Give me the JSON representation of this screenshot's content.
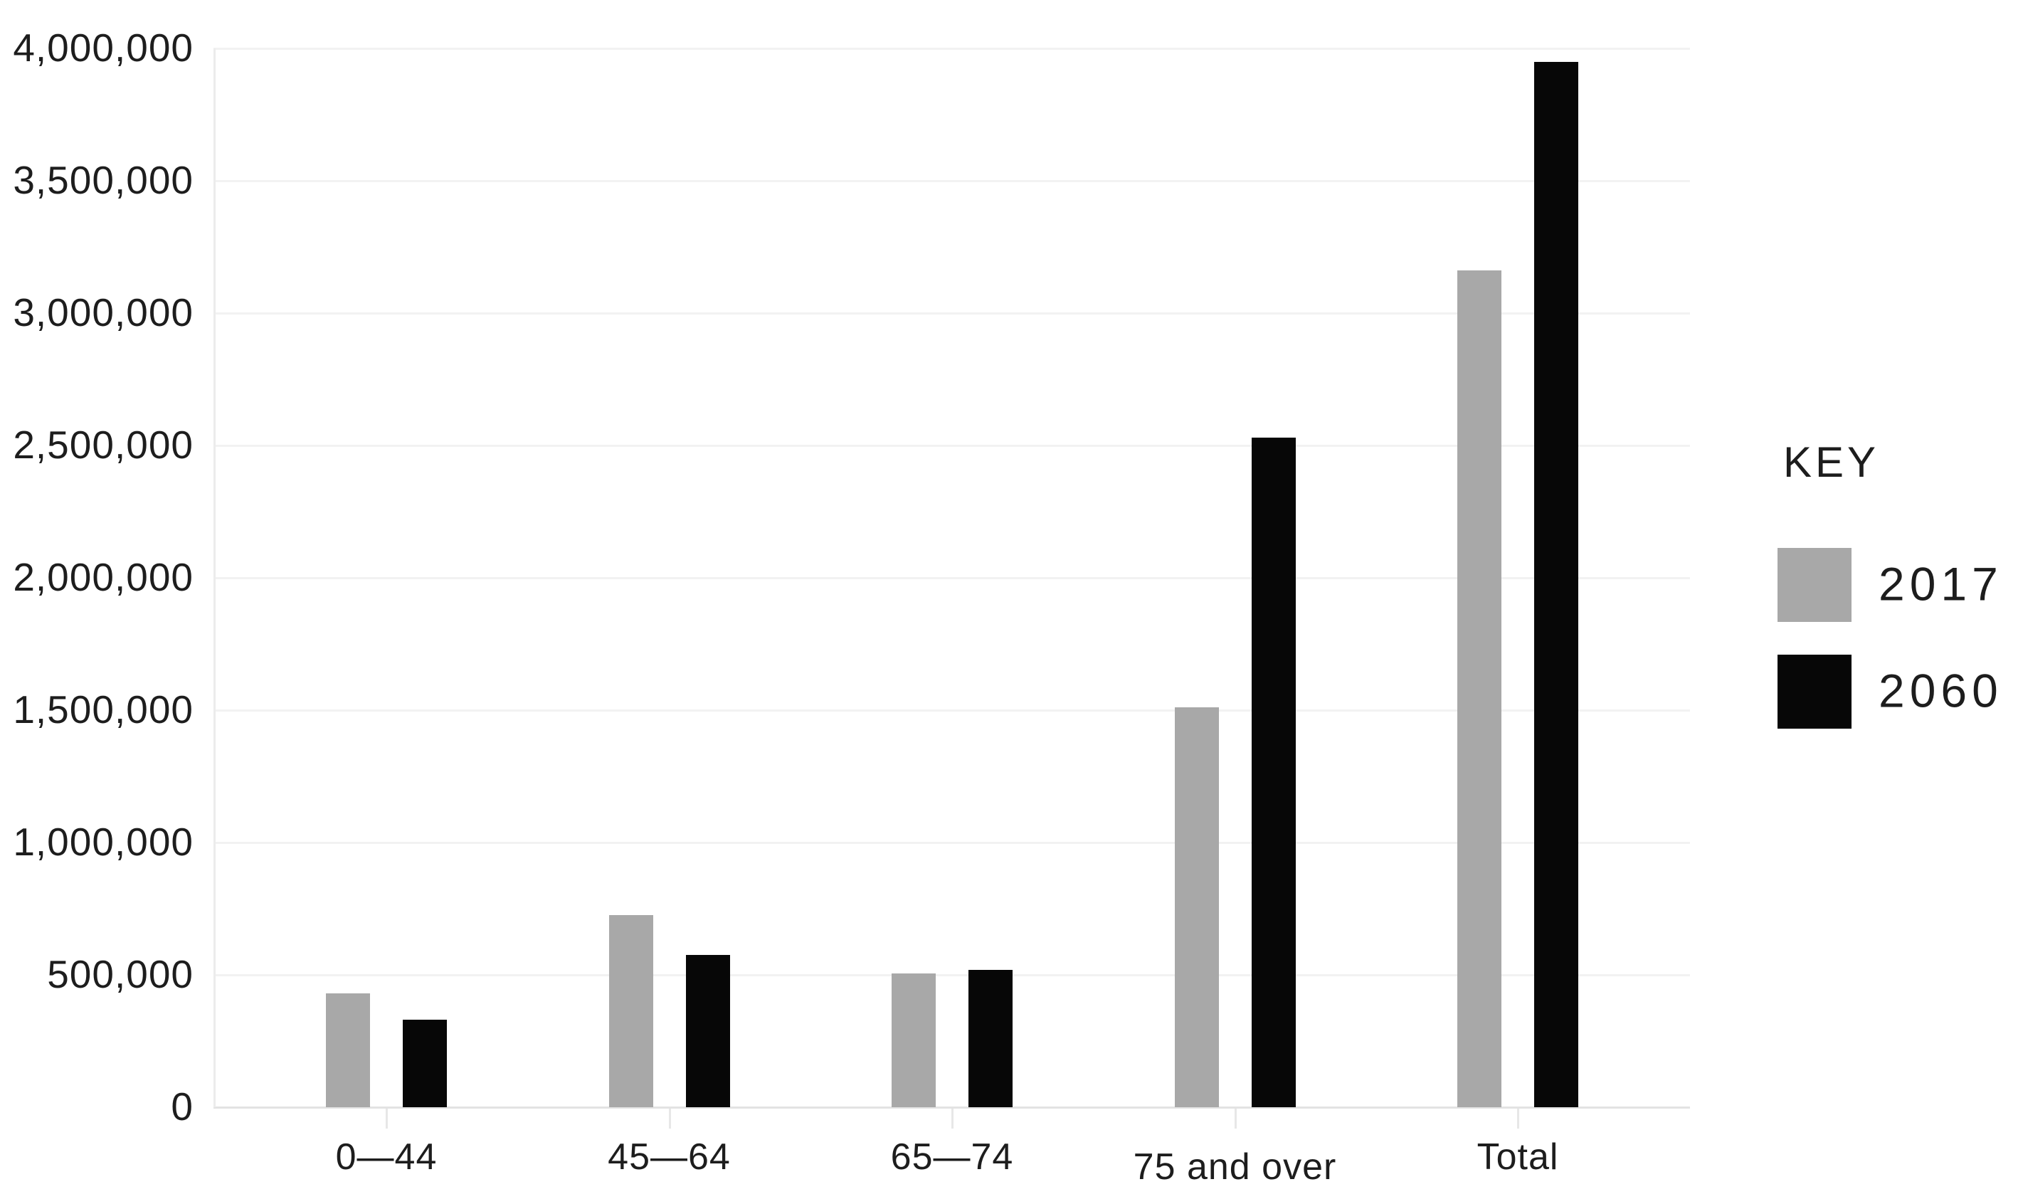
{
  "chart_data": {
    "type": "bar",
    "title": "",
    "categories": [
      "0—44",
      "45—64",
      "65—74",
      "75 and over",
      "Total"
    ],
    "series": [
      {
        "name": "2017",
        "color": "#a8a8a8",
        "values": [
          430000,
          725000,
          505000,
          1510000,
          3160000
        ]
      },
      {
        "name": "2060",
        "color": "#070707",
        "values": [
          330000,
          575000,
          520000,
          2530000,
          3950000
        ]
      }
    ],
    "xlabel": "",
    "ylabel": "",
    "ylim": [
      0,
      4000000
    ],
    "ytick_interval": 500000,
    "ytick_labels_top_to_bottom": [
      "4,000,000",
      "3,500,000",
      "3,000,000",
      "2,500,000",
      "2,000,000",
      "1,500,000",
      "1,000,000",
      "500,000",
      "0"
    ],
    "grid": "horizontal",
    "legend_position": "right"
  },
  "legend": {
    "title": "KEY",
    "items": [
      {
        "label": "2017",
        "color": "#a8a8a8"
      },
      {
        "label": "2060",
        "color": "#070707"
      }
    ]
  },
  "colors": {
    "background": "#ffffff",
    "gridline": "#f2f2f2",
    "axis_line": "#ececec",
    "baseline": "#e3e3e3",
    "text": "#1d1d1d",
    "series_2017": "#a8a8a8",
    "series_2060": "#070707"
  }
}
